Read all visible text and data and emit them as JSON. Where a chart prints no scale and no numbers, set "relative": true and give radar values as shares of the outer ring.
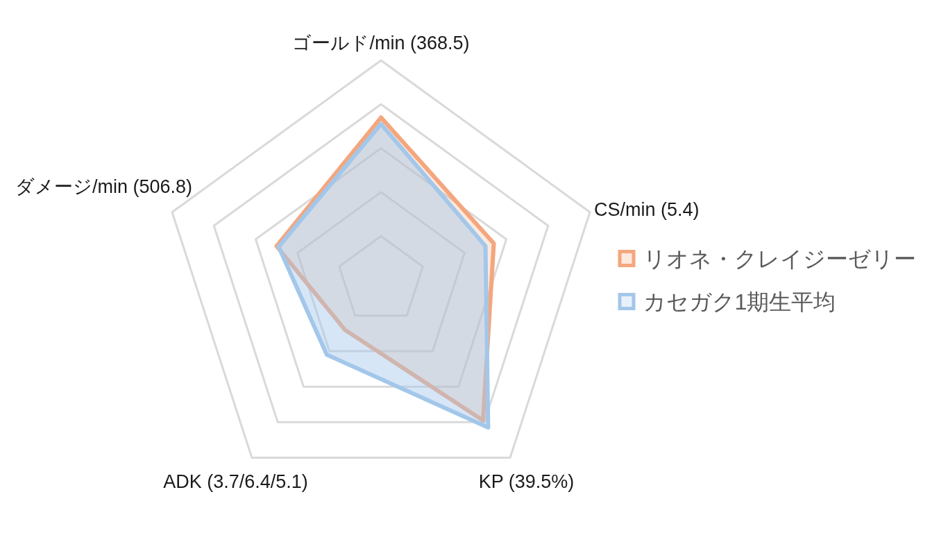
{
  "chart_data": {
    "type": "radar",
    "relative": true,
    "categories": [
      "ゴールド/min (368.5)",
      "CS/min (5.4)",
      "KP (39.5%)",
      "ADK (3.7/6.4/5.1)",
      "ダメージ/min (506.8)"
    ],
    "series": [
      {
        "name": "リオネ・クレイジーゼリー",
        "color": "#f4a67e",
        "values": [
          0.74,
          0.54,
          0.79,
          0.28,
          0.5
        ]
      },
      {
        "name": "カセガク1期生平均",
        "color": "#a3c7ea",
        "values": [
          0.71,
          0.5,
          0.83,
          0.42,
          0.49
        ]
      }
    ],
    "grid": true,
    "legend": "right"
  }
}
